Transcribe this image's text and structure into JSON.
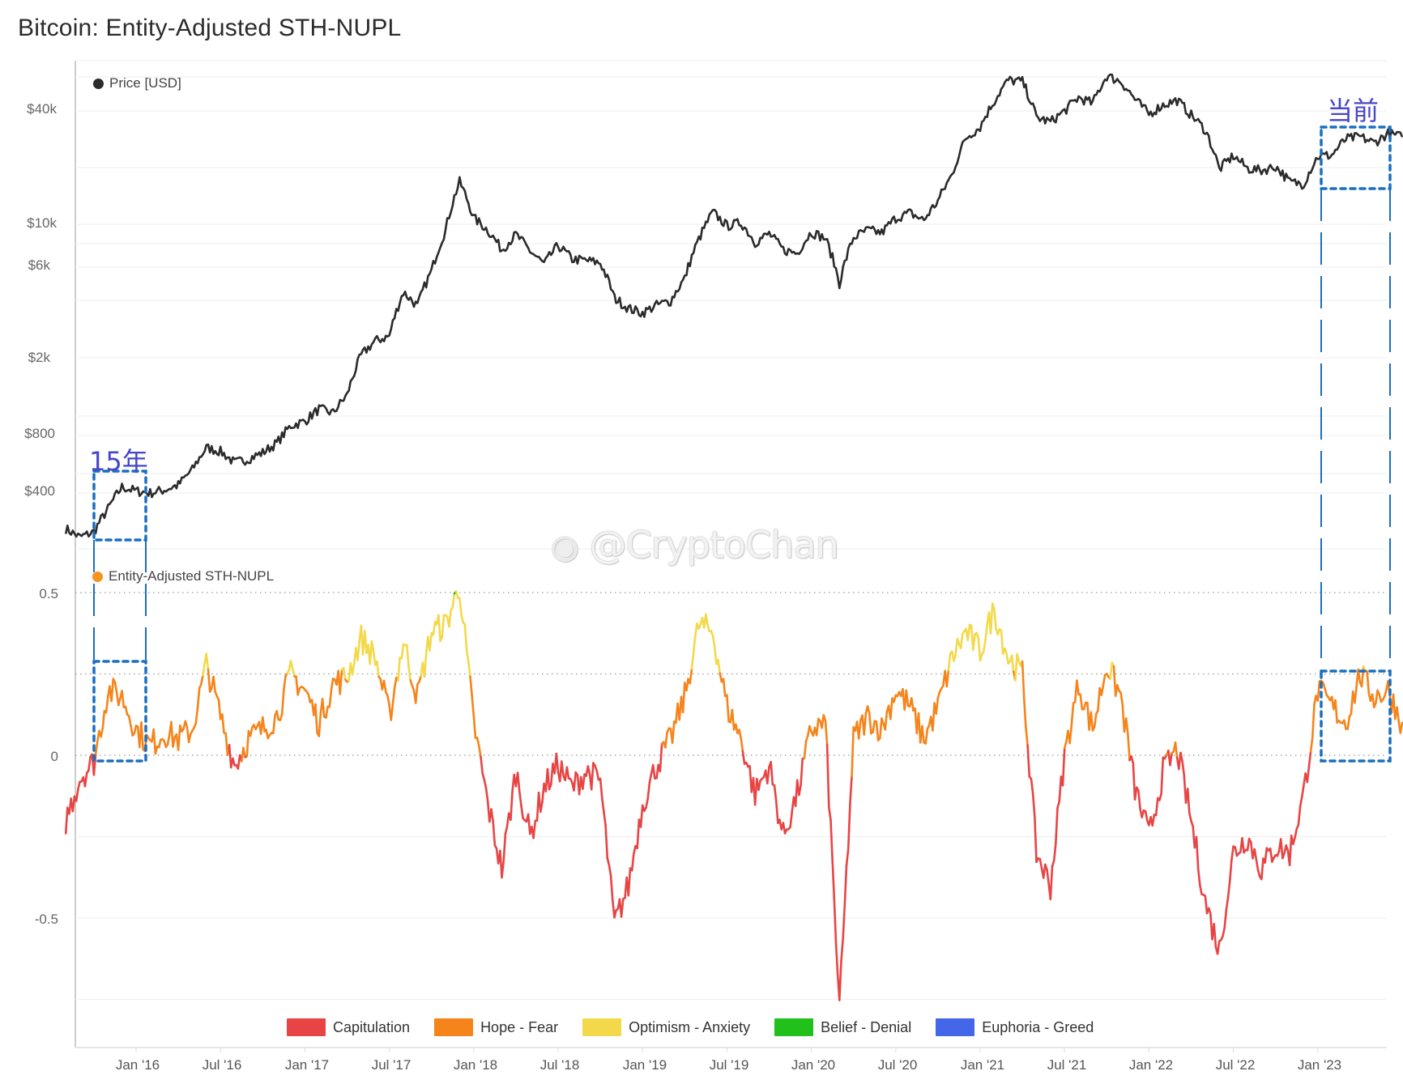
{
  "title": "Bitcoin: Entity-Adjusted STH-NUPL",
  "price_panel": {
    "legend_label": "Price [USD]",
    "legend_color": "#2b2b2b",
    "y_ticks": [
      {
        "label": "$40k",
        "value": 40000
      },
      {
        "label": "$10k",
        "value": 10000
      },
      {
        "label": "$6k",
        "value": 6000
      },
      {
        "label": "$2k",
        "value": 2000
      },
      {
        "label": "$800",
        "value": 800
      },
      {
        "label": "$400",
        "value": 400
      }
    ]
  },
  "nupl_panel": {
    "legend_label": "Entity-Adjusted STH-NUPL",
    "legend_color": "#f5841f",
    "y_ticks": [
      {
        "label": "0.5",
        "value": 0.5
      },
      {
        "label": "0",
        "value": 0
      },
      {
        "label": "-0.5",
        "value": -0.5
      }
    ]
  },
  "x_ticks": [
    "Jan '16",
    "Jul '16",
    "Jan '17",
    "Jul '17",
    "Jan '18",
    "Jul '18",
    "Jan '19",
    "Jul '19",
    "Jan '20",
    "Jul '20",
    "Jan '21",
    "Jul '21",
    "Jan '22",
    "Jul '22",
    "Jan '23"
  ],
  "legend": [
    {
      "label": "Capitulation",
      "color": "#e84444"
    },
    {
      "label": "Hope - Fear",
      "color": "#f5841a"
    },
    {
      "label": "Optimism - Anxiety",
      "color": "#f3d94a"
    },
    {
      "label": "Belief - Denial",
      "color": "#22c01a"
    },
    {
      "label": "Euphoria - Greed",
      "color": "#4466e8"
    }
  ],
  "annotations": {
    "left_label": "15年",
    "right_label": "当前",
    "box_color": "#1a6fc0"
  },
  "watermark": "@CryptoChan",
  "chart_data": [
    {
      "type": "line",
      "title": "Bitcoin: Entity-Adjusted STH-NUPL",
      "series_name": "Price [USD]",
      "yscale": "log",
      "ylim": [
        220,
        70000
      ],
      "x": [
        "2015-08",
        "2015-09",
        "2015-10",
        "2015-11",
        "2015-12",
        "2016-01",
        "2016-02",
        "2016-03",
        "2016-04",
        "2016-05",
        "2016-06",
        "2016-07",
        "2016-08",
        "2016-09",
        "2016-10",
        "2016-11",
        "2016-12",
        "2017-01",
        "2017-02",
        "2017-03",
        "2017-04",
        "2017-05",
        "2017-06",
        "2017-07",
        "2017-08",
        "2017-09",
        "2017-10",
        "2017-11",
        "2017-12",
        "2018-01",
        "2018-02",
        "2018-03",
        "2018-04",
        "2018-05",
        "2018-06",
        "2018-07",
        "2018-08",
        "2018-09",
        "2018-10",
        "2018-11",
        "2018-12",
        "2019-01",
        "2019-02",
        "2019-03",
        "2019-04",
        "2019-05",
        "2019-06",
        "2019-07",
        "2019-08",
        "2019-09",
        "2019-10",
        "2019-11",
        "2019-12",
        "2020-01",
        "2020-02",
        "2020-03",
        "2020-04",
        "2020-05",
        "2020-06",
        "2020-07",
        "2020-08",
        "2020-09",
        "2020-10",
        "2020-11",
        "2020-12",
        "2021-01",
        "2021-02",
        "2021-03",
        "2021-04",
        "2021-05",
        "2021-06",
        "2021-07",
        "2021-08",
        "2021-09",
        "2021-10",
        "2021-11",
        "2021-12",
        "2022-01",
        "2022-02",
        "2022-03",
        "2022-04",
        "2022-05",
        "2022-06",
        "2022-07",
        "2022-08",
        "2022-09",
        "2022-10",
        "2022-11",
        "2022-12",
        "2023-01",
        "2023-02",
        "2023-03",
        "2023-04",
        "2023-05",
        "2023-06",
        "2023-07"
      ],
      "values": [
        260,
        235,
        250,
        330,
        430,
        410,
        400,
        415,
        440,
        530,
        690,
        660,
        575,
        605,
        650,
        730,
        900,
        950,
        1100,
        1050,
        1300,
        2100,
        2500,
        2650,
        4500,
        3800,
        5800,
        9500,
        17000,
        11000,
        9500,
        7500,
        9000,
        7400,
        6300,
        7900,
        6700,
        6600,
        6400,
        4200,
        3700,
        3500,
        3850,
        4050,
        5300,
        8500,
        11800,
        10000,
        10400,
        8200,
        9100,
        7500,
        7200,
        9300,
        8600,
        5000,
        8700,
        9500,
        9200,
        11000,
        11700,
        10700,
        13500,
        18500,
        28900,
        33000,
        45000,
        58000,
        57000,
        37000,
        35000,
        40000,
        47000,
        43800,
        61000,
        57000,
        46000,
        38500,
        43000,
        45500,
        38000,
        31800,
        19800,
        23300,
        20000,
        19500,
        20500,
        17000,
        16600,
        23100,
        23500,
        28500,
        29300,
        27200,
        30500,
        29200
      ]
    },
    {
      "type": "line",
      "series_name": "Entity-Adjusted STH-NUPL",
      "ylim": [
        -0.75,
        0.55
      ],
      "reference_lines": [
        0.5,
        0.25,
        0
      ],
      "color_bands": [
        {
          "range": "< 0",
          "label": "Capitulation"
        },
        {
          "range": "0 – 0.25",
          "label": "Hope - Fear"
        },
        {
          "range": "0.25 – 0.5",
          "label": "Optimism - Anxiety"
        },
        {
          "range": "0.5 – 0.75",
          "label": "Belief - Denial"
        },
        {
          "range": "> 0.75",
          "label": "Euphoria - Greed"
        }
      ],
      "x": [
        "2015-08",
        "2015-09",
        "2015-10",
        "2015-11",
        "2015-12",
        "2016-01",
        "2016-02",
        "2016-03",
        "2016-04",
        "2016-05",
        "2016-06",
        "2016-07",
        "2016-08",
        "2016-09",
        "2016-10",
        "2016-11",
        "2016-12",
        "2017-01",
        "2017-02",
        "2017-03",
        "2017-04",
        "2017-05",
        "2017-06",
        "2017-07",
        "2017-08",
        "2017-09",
        "2017-10",
        "2017-11",
        "2017-12",
        "2018-01",
        "2018-02",
        "2018-03",
        "2018-04",
        "2018-05",
        "2018-06",
        "2018-07",
        "2018-08",
        "2018-09",
        "2018-10",
        "2018-11",
        "2018-12",
        "2019-01",
        "2019-02",
        "2019-03",
        "2019-04",
        "2019-05",
        "2019-06",
        "2019-07",
        "2019-08",
        "2019-09",
        "2019-10",
        "2019-11",
        "2019-12",
        "2020-01",
        "2020-02",
        "2020-03",
        "2020-04",
        "2020-05",
        "2020-06",
        "2020-07",
        "2020-08",
        "2020-09",
        "2020-10",
        "2020-11",
        "2020-12",
        "2021-01",
        "2021-02",
        "2021-03",
        "2021-04",
        "2021-05",
        "2021-06",
        "2021-07",
        "2021-08",
        "2021-09",
        "2021-10",
        "2021-11",
        "2021-12",
        "2022-01",
        "2022-02",
        "2022-03",
        "2022-04",
        "2022-05",
        "2022-06",
        "2022-07",
        "2022-08",
        "2022-09",
        "2022-10",
        "2022-11",
        "2022-12",
        "2023-01",
        "2023-02",
        "2023-03",
        "2023-04",
        "2023-05",
        "2023-06",
        "2023-07"
      ],
      "values": [
        -0.2,
        -0.07,
        -0.02,
        0.2,
        0.18,
        0.08,
        0.03,
        0.07,
        0.05,
        0.08,
        0.28,
        0.12,
        -0.03,
        0.05,
        0.08,
        0.12,
        0.25,
        0.2,
        0.1,
        0.22,
        0.24,
        0.36,
        0.3,
        0.12,
        0.35,
        0.18,
        0.38,
        0.4,
        0.52,
        0.1,
        -0.15,
        -0.35,
        -0.05,
        -0.25,
        -0.1,
        -0.03,
        -0.1,
        -0.05,
        -0.08,
        -0.52,
        -0.4,
        -0.15,
        -0.03,
        0.05,
        0.18,
        0.4,
        0.38,
        0.15,
        0.05,
        -0.12,
        -0.03,
        -0.25,
        -0.12,
        0.08,
        0.1,
        -0.78,
        0.05,
        0.12,
        0.08,
        0.2,
        0.15,
        0.05,
        0.15,
        0.3,
        0.38,
        0.32,
        0.45,
        0.3,
        0.25,
        -0.3,
        -0.4,
        0.0,
        0.22,
        0.08,
        0.28,
        0.18,
        -0.1,
        -0.25,
        -0.05,
        0.02,
        -0.2,
        -0.45,
        -0.6,
        -0.3,
        -0.25,
        -0.35,
        -0.28,
        -0.3,
        -0.12,
        0.2,
        0.15,
        0.1,
        0.25,
        0.18,
        0.2,
        0.1
      ]
    }
  ]
}
